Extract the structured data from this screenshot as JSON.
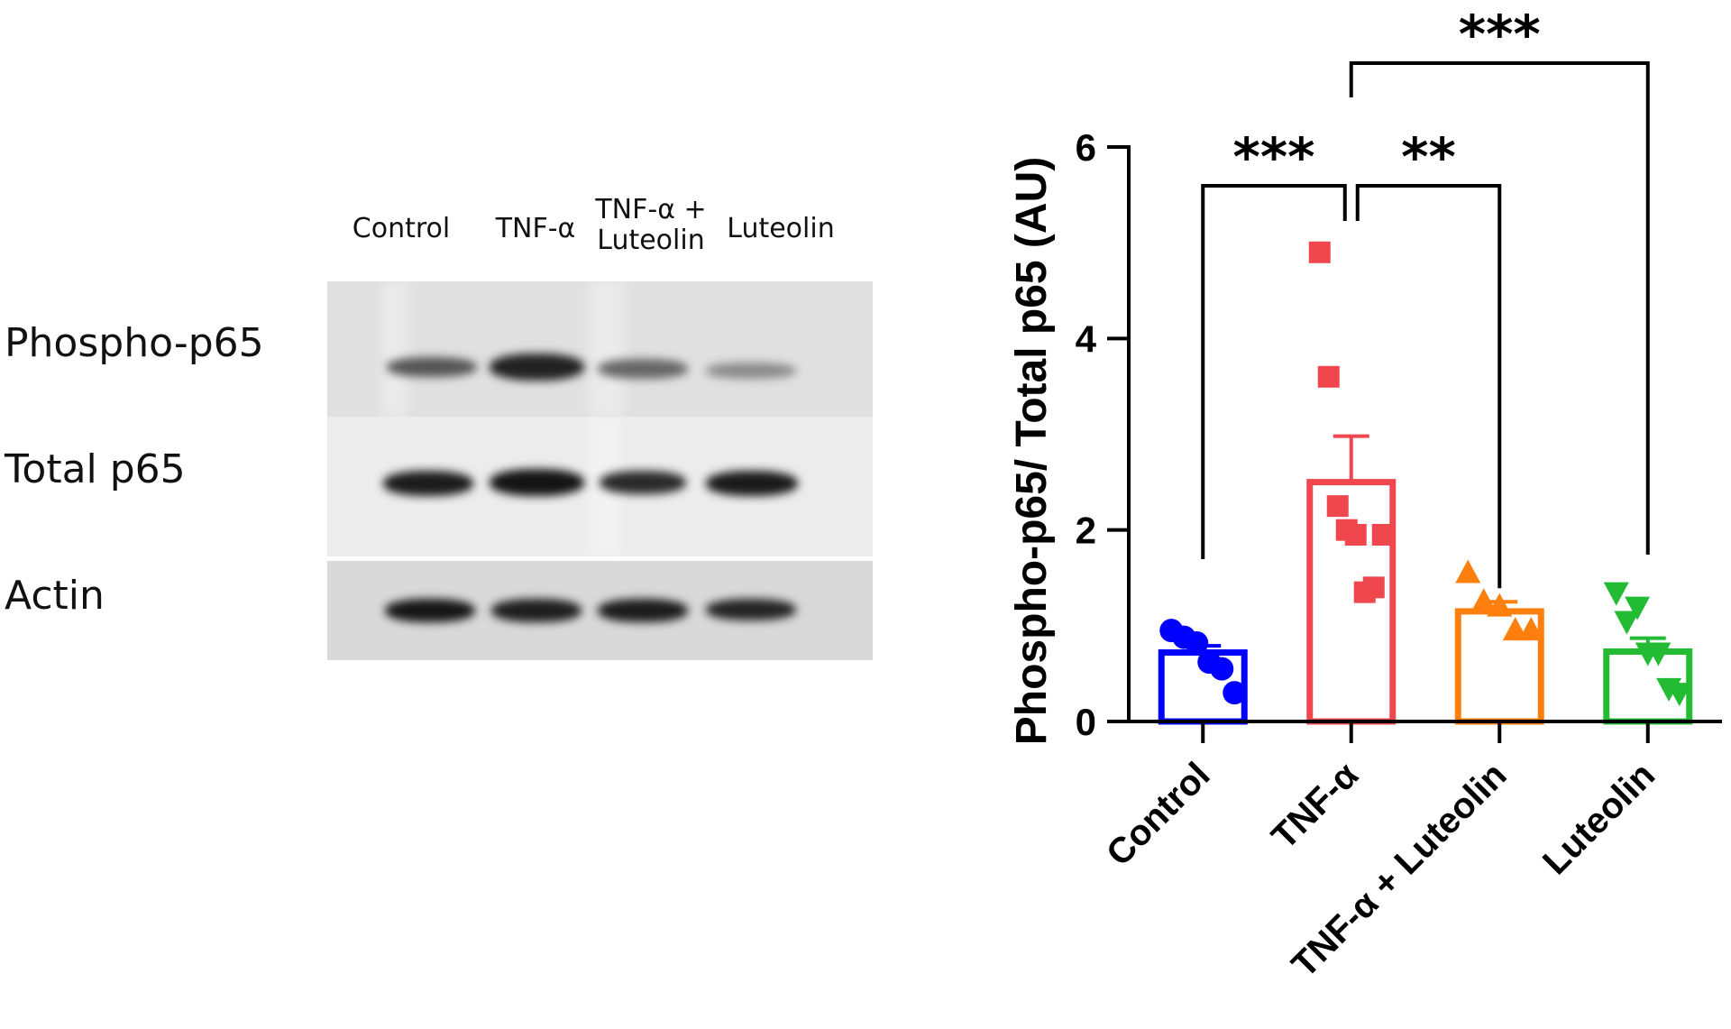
{
  "blot": {
    "lanes": [
      "Control",
      "TNF-α",
      "TNF-α +\nLuteolin",
      "Luteolin"
    ],
    "rows": [
      "Phospho-p65",
      "Total p65",
      "Actin"
    ]
  },
  "chart_data": {
    "type": "bar",
    "categories": [
      "Control",
      "TNF-α",
      "TNF-α + Luteolin",
      "Luteolin"
    ],
    "ylabel": "Phospho-p65/ Total p65 (AU)",
    "ylim": [
      0,
      6
    ],
    "yticks": [
      0,
      2,
      4,
      6
    ],
    "grid": false,
    "series": [
      {
        "values": [
          0.72,
          2.5,
          1.15,
          0.73
        ],
        "sem": [
          0.07,
          0.48,
          0.1,
          0.14
        ],
        "colors": [
          "#0000FF",
          "#F0474F",
          "#FF7F0E",
          "#22BB33"
        ],
        "markers": [
          "circle",
          "square",
          "triangle-up",
          "triangle-down"
        ],
        "points": [
          [
            0.95,
            0.88,
            0.82,
            0.62,
            0.55,
            0.3
          ],
          [
            4.9,
            3.6,
            2.25,
            2.0,
            1.95,
            1.35,
            1.4,
            1.95
          ],
          [
            1.55,
            1.25,
            1.2,
            0.95,
            0.95
          ],
          [
            1.35,
            1.05,
            1.2,
            0.72,
            0.72,
            0.35,
            0.3
          ]
        ]
      }
    ],
    "annotations": [
      {
        "from": "Control",
        "to": "TNF-α",
        "text": "***"
      },
      {
        "from": "TNF-α",
        "to": "TNF-α + Luteolin",
        "text": "**"
      },
      {
        "from": "TNF-α",
        "to": "Luteolin",
        "text": "***"
      }
    ]
  }
}
